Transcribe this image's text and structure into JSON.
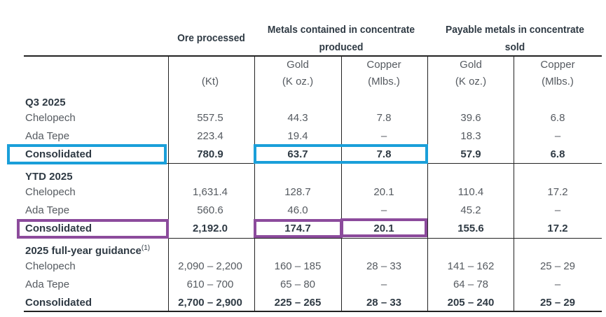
{
  "headers": {
    "ore": "Ore processed",
    "metals_line1": "Metals contained in concentrate",
    "metals_line2": "produced",
    "payable_line1": "Payable metals in concentrate",
    "payable_line2": "sold"
  },
  "units": [
    {
      "name": "",
      "unit": "(Kt)"
    },
    {
      "name": "Gold",
      "unit": "(K oz.)"
    },
    {
      "name": "Copper",
      "unit": "(Mlbs.)"
    },
    {
      "name": "Gold",
      "unit": "(K oz.)"
    },
    {
      "name": "Copper",
      "unit": "(Mlbs.)"
    }
  ],
  "sections": [
    {
      "title": "Q3 2025",
      "sup": "",
      "rows": [
        {
          "label": "Chelopech",
          "values": [
            "557.5",
            "44.3",
            "7.8",
            "39.6",
            "6.8"
          ],
          "bold": false
        },
        {
          "label": "Ada Tepe",
          "values": [
            "223.4",
            "19.4",
            "–",
            "18.3",
            "–"
          ],
          "bold": false
        },
        {
          "label": "Consolidated",
          "values": [
            "780.9",
            "63.7",
            "7.8",
            "57.9",
            "6.8"
          ],
          "bold": true
        }
      ]
    },
    {
      "title": "YTD 2025",
      "sup": "",
      "rows": [
        {
          "label": "Chelopech",
          "values": [
            "1,631.4",
            "128.7",
            "20.1",
            "110.4",
            "17.2"
          ],
          "bold": false
        },
        {
          "label": "Ada Tepe",
          "values": [
            "560.6",
            "46.0",
            "–",
            "45.2",
            "–"
          ],
          "bold": false
        },
        {
          "label": "Consolidated",
          "values": [
            "2,192.0",
            "174.7",
            "20.1",
            "155.6",
            "17.2"
          ],
          "bold": true
        }
      ]
    },
    {
      "title": "2025 full-year guidance",
      "sup": "(1)",
      "rows": [
        {
          "label": "Chelopech",
          "values": [
            "2,090 – 2,200",
            "160 – 185",
            "28 – 33",
            "141 – 162",
            "25 – 29"
          ],
          "bold": false
        },
        {
          "label": "Ada Tepe",
          "values": [
            "610 – 700",
            "65 – 80",
            "–",
            "64 – 78",
            "–"
          ],
          "bold": false
        },
        {
          "label": "Consolidated",
          "values": [
            "2,700 – 2,900",
            "225 – 265",
            "28 – 33",
            "205 – 240",
            "25 – 29"
          ],
          "bold": true
        }
      ]
    }
  ],
  "colors": {
    "highlight_blue": "#1a9fd9",
    "highlight_purple": "#8c4b9c"
  }
}
